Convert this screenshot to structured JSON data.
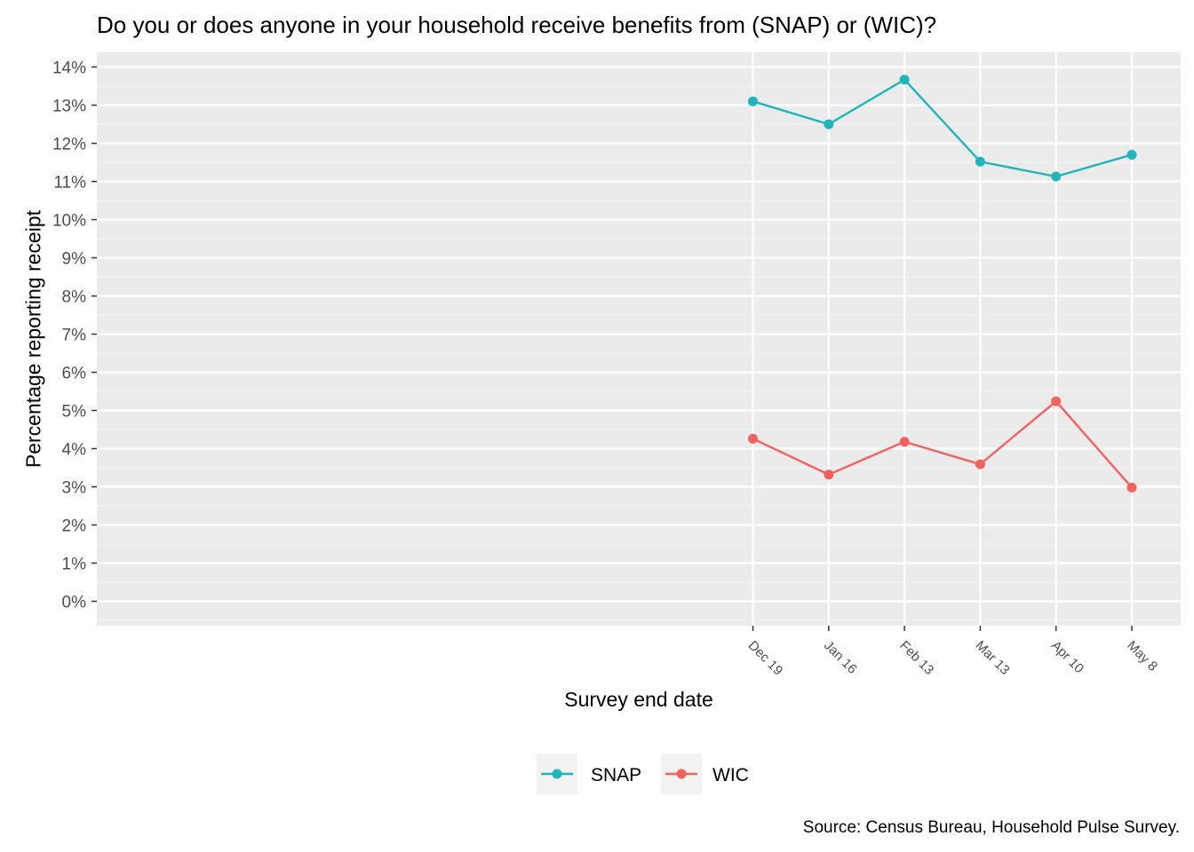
{
  "chart_data": {
    "type": "line",
    "title": "Do you or does anyone in your household receive benefits from (SNAP) or (WIC)?",
    "xlabel": "Survey end date",
    "ylabel": "Percentage reporting receipt",
    "x": [
      "Dec 19",
      "Jan 16",
      "Feb 13",
      "Mar 13",
      "Apr 10",
      "May 8"
    ],
    "yticks": [
      "0%",
      "1%",
      "2%",
      "3%",
      "4%",
      "5%",
      "6%",
      "7%",
      "8%",
      "9%",
      "10%",
      "11%",
      "12%",
      "13%",
      "14%"
    ],
    "ylim": [
      0,
      14
    ],
    "series": [
      {
        "name": "SNAP",
        "color": "#1FB5BA",
        "values": [
          13.1,
          12.5,
          13.67,
          11.52,
          11.13,
          11.7
        ]
      },
      {
        "name": "WIC",
        "color": "#F3625F",
        "values": [
          4.26,
          3.32,
          4.18,
          3.59,
          5.24,
          2.98
        ]
      }
    ],
    "legend": "bottom",
    "grid": true,
    "source": "Source: Census Bureau, Household Pulse Survey."
  }
}
